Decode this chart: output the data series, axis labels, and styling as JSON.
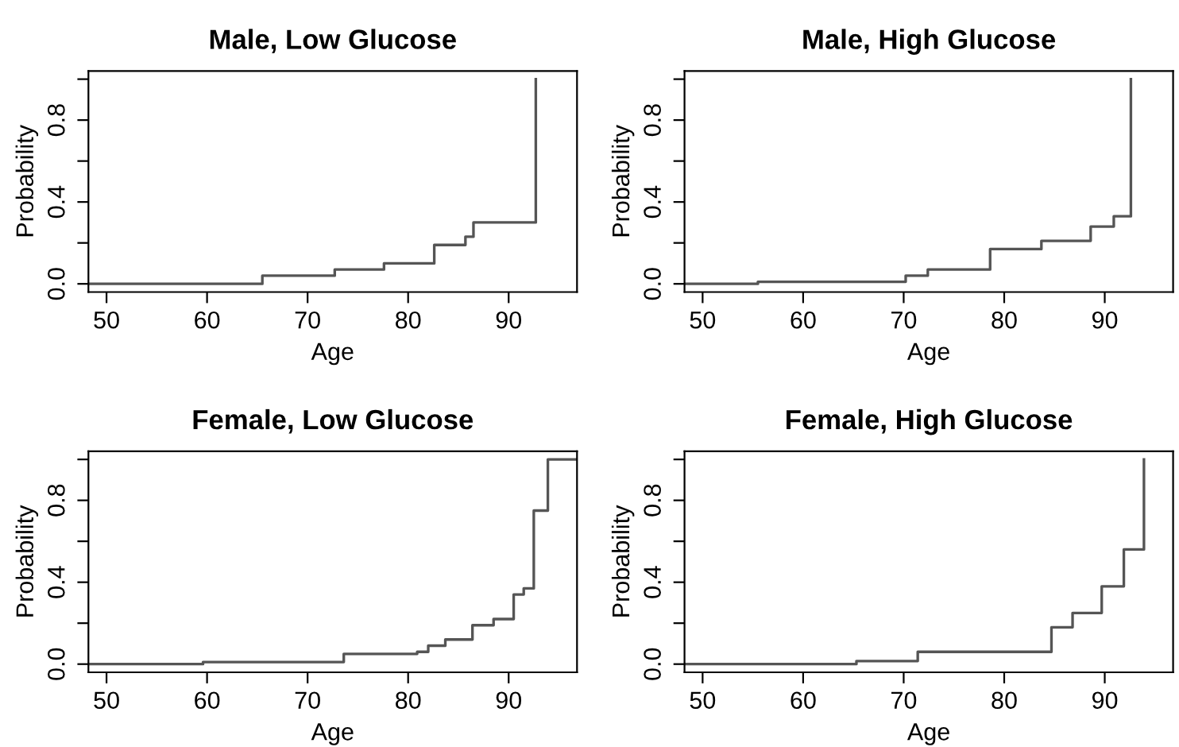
{
  "chart_data": [
    {
      "type": "step",
      "title": "Male, Low Glucose",
      "xlabel": "Age",
      "ylabel": "Probability",
      "xlim": [
        48.2,
        96.8
      ],
      "ylim": [
        -0.04,
        1.04
      ],
      "xticks": [
        50,
        60,
        70,
        80,
        90
      ],
      "yticks": [
        {
          "value": 0,
          "label": "0.0"
        },
        {
          "value": 0.2,
          "label": null
        },
        {
          "value": 0.4,
          "label": "0.4"
        },
        {
          "value": 0.6,
          "label": null
        },
        {
          "value": 0.8,
          "label": "0.8"
        },
        {
          "value": 1.0,
          "label": null
        }
      ],
      "grid": false,
      "legend": false,
      "series": [
        {
          "color": "#555555",
          "x": [
            48.2,
            65.5,
            72.7,
            77.6,
            82.6,
            85.7,
            86.5,
            92.7
          ],
          "values": [
            0,
            0.04,
            0.07,
            0.1,
            0.19,
            0.23,
            0.3,
            1.0
          ]
        }
      ]
    },
    {
      "type": "step",
      "title": "Male, High Glucose",
      "xlabel": "Age",
      "ylabel": "Probability",
      "xlim": [
        48.2,
        96.8
      ],
      "ylim": [
        -0.04,
        1.04
      ],
      "xticks": [
        50,
        60,
        70,
        80,
        90
      ],
      "yticks": [
        {
          "value": 0,
          "label": "0.0"
        },
        {
          "value": 0.2,
          "label": null
        },
        {
          "value": 0.4,
          "label": "0.4"
        },
        {
          "value": 0.6,
          "label": null
        },
        {
          "value": 0.8,
          "label": "0.8"
        },
        {
          "value": 1.0,
          "label": null
        }
      ],
      "grid": false,
      "legend": false,
      "series": [
        {
          "color": "#555555",
          "x": [
            48.2,
            55.5,
            70.2,
            72.4,
            78.6,
            83.7,
            88.6,
            90.9,
            92.6
          ],
          "values": [
            0,
            0.01,
            0.04,
            0.07,
            0.17,
            0.21,
            0.28,
            0.33,
            1.0
          ]
        }
      ]
    },
    {
      "type": "step",
      "title": "Female, Low Glucose",
      "xlabel": "Age",
      "ylabel": "Probability",
      "xlim": [
        48.2,
        96.8
      ],
      "ylim": [
        -0.04,
        1.04
      ],
      "xticks": [
        50,
        60,
        70,
        80,
        90
      ],
      "yticks": [
        {
          "value": 0,
          "label": "0.0"
        },
        {
          "value": 0.2,
          "label": null
        },
        {
          "value": 0.4,
          "label": "0.4"
        },
        {
          "value": 0.6,
          "label": null
        },
        {
          "value": 0.8,
          "label": "0.8"
        },
        {
          "value": 1.0,
          "label": null
        }
      ],
      "grid": false,
      "legend": false,
      "series": [
        {
          "color": "#555555",
          "x": [
            48.2,
            59.6,
            73.6,
            80.9,
            82.0,
            83.7,
            86.4,
            88.5,
            90.5,
            91.5,
            92.5,
            93.9,
            96.8
          ],
          "values": [
            0,
            0.01,
            0.05,
            0.06,
            0.09,
            0.12,
            0.19,
            0.22,
            0.34,
            0.37,
            0.75,
            1.0,
            1.0
          ]
        }
      ]
    },
    {
      "type": "step",
      "title": "Female, High Glucose",
      "xlabel": "Age",
      "ylabel": "Probability",
      "xlim": [
        48.2,
        96.8
      ],
      "ylim": [
        -0.04,
        1.04
      ],
      "xticks": [
        50,
        60,
        70,
        80,
        90
      ],
      "yticks": [
        {
          "value": 0,
          "label": "0.0"
        },
        {
          "value": 0.2,
          "label": null
        },
        {
          "value": 0.4,
          "label": "0.4"
        },
        {
          "value": 0.6,
          "label": null
        },
        {
          "value": 0.8,
          "label": "0.8"
        },
        {
          "value": 1.0,
          "label": null
        }
      ],
      "grid": false,
      "legend": false,
      "series": [
        {
          "color": "#555555",
          "x": [
            48.2,
            65.3,
            71.4,
            84.7,
            86.8,
            89.7,
            91.9,
            93.9
          ],
          "values": [
            0,
            0.015,
            0.06,
            0.18,
            0.25,
            0.38,
            0.56,
            1.0
          ]
        }
      ]
    }
  ]
}
